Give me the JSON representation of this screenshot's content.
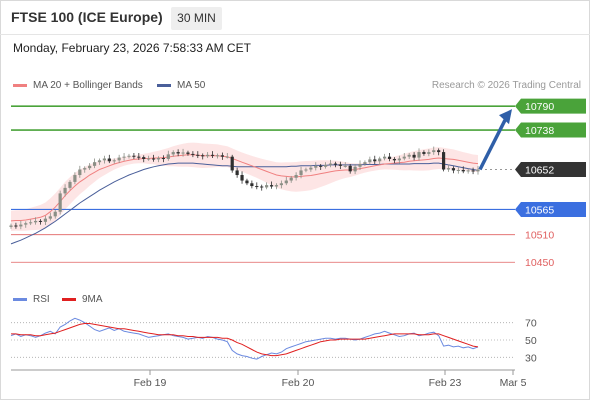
{
  "header": {
    "title": "FTSE 100 (ICE Europe)",
    "timeframe": "30 MIN",
    "datetime": "Monday, February 23, 2026 7:58:33 AM CET"
  },
  "legend": {
    "ma20_label": "MA 20 + Bollinger Bands",
    "ma50_label": "MA 50",
    "credit": "Research © 2026 Trading Central",
    "rsi_label": "RSI",
    "ma9_label": "9MA"
  },
  "colors": {
    "up_candle": "#8b8f86",
    "down_candle": "#2e2e2e",
    "ma20": "#f08080",
    "bollinger_fill": "#fcdcdc",
    "ma50": "#4a5f9a",
    "resistance": "#4aa33a",
    "support_blue": "#3b6fe0",
    "support_red": "#e06060",
    "current_price": "#333333",
    "arrow": "#2f5fa8",
    "rsi": "#6b8ae0",
    "rsi_ma": "#e02020"
  },
  "chart_data": [
    {
      "type": "line",
      "subtype": "candlestick",
      "x_labels": [
        "Feb 19",
        "Feb 20",
        "Feb 23",
        "Mar 5"
      ],
      "ylim": [
        10420,
        10810
      ],
      "levels": [
        {
          "label": "10790",
          "value": 10790,
          "kind": "resistance"
        },
        {
          "label": "10738",
          "value": 10738,
          "kind": "resistance"
        },
        {
          "label": "10652",
          "value": 10652,
          "kind": "current"
        },
        {
          "label": "10565",
          "value": 10565,
          "kind": "support"
        },
        {
          "label": "10510",
          "value": 10510,
          "kind": "support-weak"
        },
        {
          "label": "10450",
          "value": 10450,
          "kind": "support-weak"
        }
      ],
      "close_series": [
        10530,
        10528,
        10532,
        10535,
        10537,
        10540,
        10538,
        10545,
        10550,
        10560,
        10600,
        10612,
        10625,
        10640,
        10652,
        10655,
        10660,
        10668,
        10672,
        10676,
        10670,
        10672,
        10678,
        10680,
        10682,
        10680,
        10679,
        10675,
        10676,
        10674,
        10677,
        10675,
        10685,
        10690,
        10687,
        10689,
        10686,
        10684,
        10683,
        10681,
        10684,
        10682,
        10683,
        10680,
        10680,
        10650,
        10640,
        10628,
        10622,
        10616,
        10615,
        10613,
        10618,
        10615,
        10618,
        10622,
        10628,
        10634,
        10640,
        10650,
        10652,
        10656,
        10660,
        10658,
        10662,
        10665,
        10663,
        10660,
        10660,
        10648,
        10658,
        10664,
        10668,
        10674,
        10670,
        10676,
        10680,
        10675,
        10672,
        10676,
        10680,
        10684,
        10678,
        10690,
        10686,
        10690,
        10694,
        10690,
        10652,
        10655,
        10650,
        10651,
        10648,
        10650,
        10648,
        10652
      ],
      "ma20_series": [
        10540,
        10541,
        10541,
        10542,
        10544,
        10546,
        10548,
        10552,
        10560,
        10570,
        10582,
        10595,
        10606,
        10616,
        10625,
        10632,
        10640,
        10646,
        10652,
        10656,
        10660,
        10664,
        10667,
        10670,
        10672,
        10674,
        10675,
        10676,
        10676,
        10677,
        10677,
        10678,
        10679,
        10681,
        10682,
        10683,
        10684,
        10684,
        10683,
        10682,
        10682,
        10682,
        10682,
        10681,
        10680,
        10676,
        10672,
        10668,
        10664,
        10660,
        10656,
        10652,
        10648,
        10644,
        10640,
        10638,
        10637,
        10636,
        10636,
        10637,
        10638,
        10639,
        10641,
        10643,
        10645,
        10647,
        10649,
        10650,
        10651,
        10651,
        10652,
        10654,
        10656,
        10658,
        10660,
        10662,
        10664,
        10665,
        10666,
        10667,
        10668,
        10670,
        10671,
        10672,
        10673,
        10674,
        10676,
        10677,
        10676,
        10675,
        10674,
        10672,
        10670,
        10668,
        10666,
        10665
      ],
      "ma50_series": [
        10490,
        10494,
        10498,
        10503,
        10508,
        10513,
        10519,
        10525,
        10532,
        10539,
        10547,
        10555,
        10563,
        10571,
        10579,
        10586,
        10593,
        10600,
        10607,
        10613,
        10619,
        10625,
        10630,
        10635,
        10640,
        10644,
        10648,
        10652,
        10655,
        10658,
        10660,
        10662,
        10664,
        10665,
        10666,
        10666,
        10666,
        10666,
        10665,
        10664,
        10663,
        10662,
        10661,
        10660,
        10660,
        10659,
        10658,
        10658,
        10658,
        10658,
        10658,
        10658,
        10658,
        10658,
        10658,
        10658,
        10658,
        10659,
        10659,
        10660,
        10660,
        10660,
        10661,
        10661,
        10661,
        10662,
        10662,
        10662,
        10662,
        10662,
        10662,
        10662,
        10663,
        10663,
        10663,
        10663,
        10664,
        10664,
        10664,
        10664,
        10664,
        10664,
        10665,
        10665,
        10665,
        10665,
        10666,
        10666,
        10664,
        10662,
        10660,
        10658,
        10656,
        10654,
        10652,
        10650
      ],
      "bollinger_width": 22
    },
    {
      "type": "line",
      "ylim": [
        20,
        80
      ],
      "ticks": [
        70,
        50,
        30
      ],
      "rsi_series": [
        55,
        57,
        54,
        56,
        55,
        53,
        55,
        58,
        60,
        57,
        65,
        68,
        72,
        75,
        73,
        70,
        66,
        62,
        60,
        62,
        64,
        61,
        63,
        60,
        59,
        58,
        57,
        55,
        53,
        54,
        55,
        56,
        57,
        55,
        54,
        53,
        51,
        52,
        53,
        52,
        54,
        53,
        51,
        50,
        48,
        38,
        34,
        32,
        31,
        29,
        28,
        31,
        33,
        35,
        34,
        36,
        40,
        42,
        44,
        46,
        48,
        49,
        50,
        51,
        52,
        52,
        51,
        52,
        52,
        51,
        50,
        51,
        53,
        55,
        57,
        58,
        60,
        58,
        56,
        54,
        55,
        57,
        58,
        55,
        56,
        58,
        59,
        55,
        43,
        44,
        42,
        43,
        41,
        42,
        40,
        42
      ],
      "ma9_series": [
        57,
        57,
        56,
        56,
        56,
        55,
        55,
        56,
        57,
        58,
        60,
        62,
        64,
        66,
        68,
        69,
        69,
        68,
        67,
        66,
        65,
        64,
        63,
        63,
        62,
        61,
        60,
        59,
        58,
        57,
        56,
        56,
        56,
        56,
        55,
        55,
        54,
        54,
        53,
        53,
        53,
        53,
        53,
        52,
        52,
        50,
        47,
        45,
        42,
        39,
        36,
        34,
        33,
        32,
        32,
        33,
        34,
        36,
        38,
        40,
        42,
        44,
        46,
        48,
        49,
        50,
        50,
        51,
        51,
        51,
        51,
        51,
        51,
        52,
        53,
        54,
        55,
        56,
        57,
        57,
        57,
        57,
        57,
        56,
        56,
        56,
        57,
        57,
        55,
        53,
        51,
        49,
        47,
        45,
        43,
        42
      ]
    }
  ]
}
